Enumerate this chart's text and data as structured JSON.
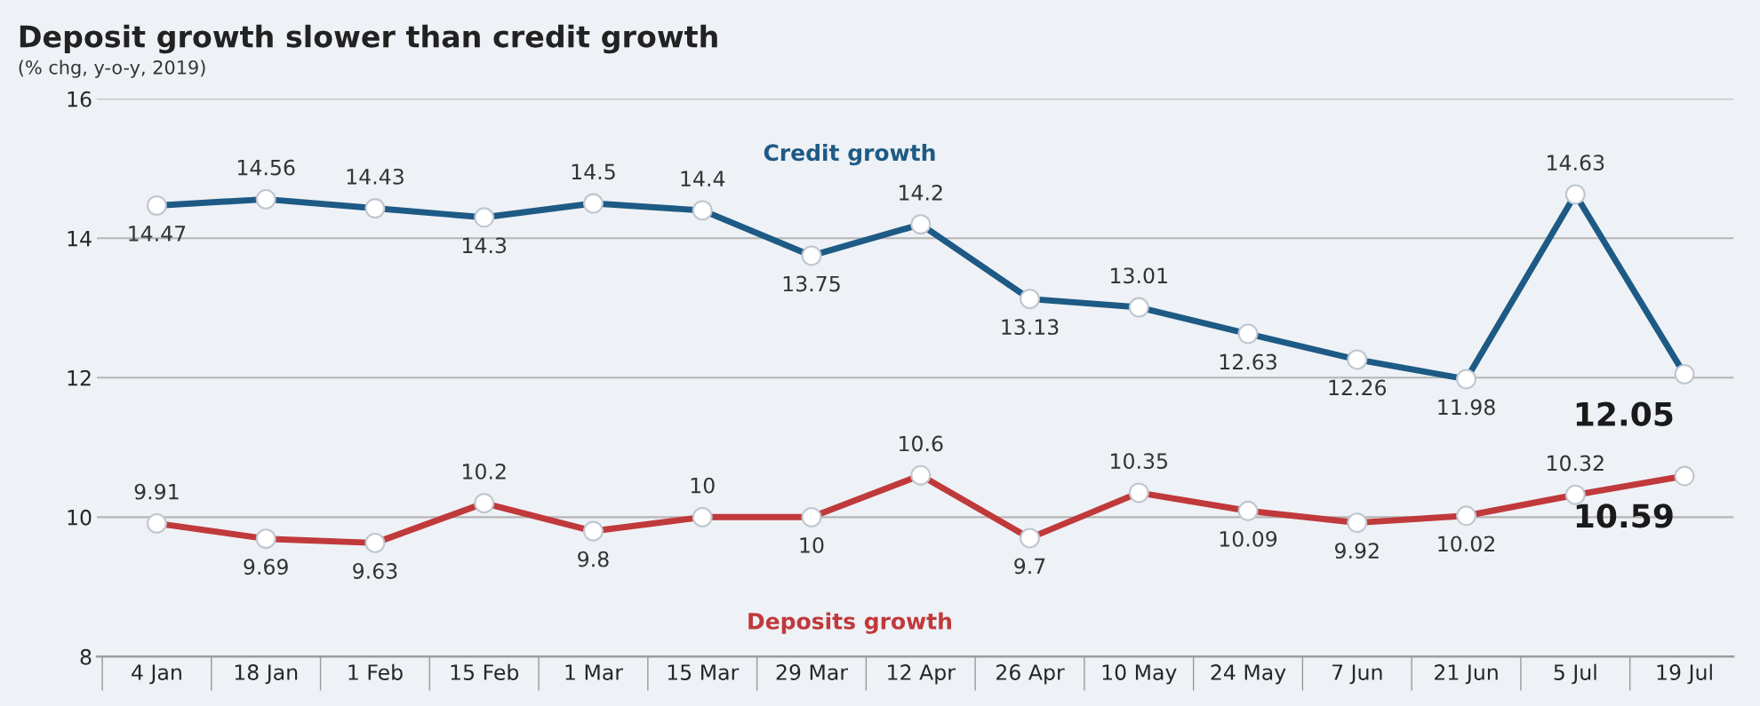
{
  "chart_data": {
    "type": "line",
    "title": "Deposit growth slower than credit growth",
    "subtitle": "(% chg, y-o-y, 2019)",
    "categories": [
      "4 Jan",
      "18 Jan",
      "1 Feb",
      "15 Feb",
      "1 Mar",
      "15 Mar",
      "29 Mar",
      "12 Apr",
      "26 Apr",
      "10 May",
      "24 May",
      "7 Jun",
      "21 Jun",
      "5 Jul",
      "19 Jul"
    ],
    "series": [
      {
        "name": "Credit growth",
        "color": "#1d5a85",
        "values": [
          14.47,
          14.56,
          14.43,
          14.3,
          14.5,
          14.4,
          13.75,
          14.2,
          13.13,
          13.01,
          12.63,
          12.26,
          11.98,
          14.63,
          12.05
        ]
      },
      {
        "name": "Deposits growth",
        "color": "#c0393b",
        "values": [
          9.91,
          9.69,
          9.63,
          10.2,
          9.8,
          10,
          10,
          10.6,
          9.7,
          10.35,
          10.09,
          9.92,
          10.02,
          10.32,
          10.59
        ]
      }
    ],
    "ylim": [
      8,
      16
    ],
    "yticks": [
      8,
      10,
      12,
      14,
      16
    ],
    "grid": "y",
    "marker": "circle",
    "line_style": "solid",
    "data_labels": true
  }
}
